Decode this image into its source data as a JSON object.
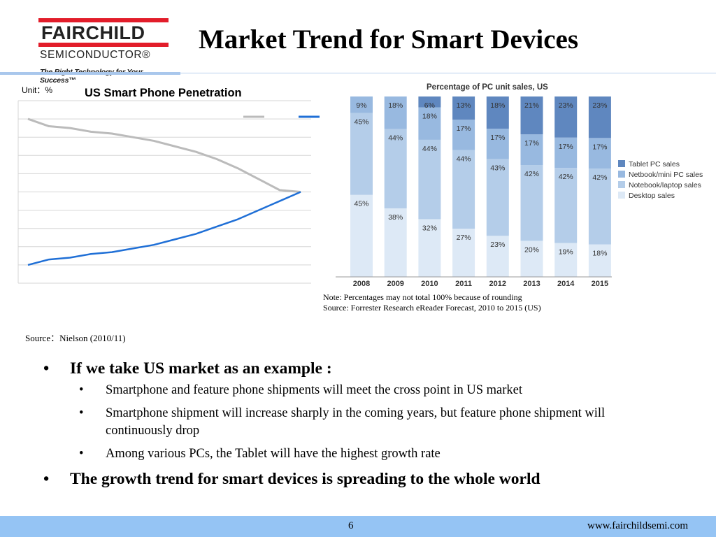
{
  "logo": {
    "word": "FAIRCHILD",
    "sub": "SEMICONDUCTOR®",
    "tagline": "The Right Technology for Your Success™",
    "brand_color": "#e21d2a"
  },
  "title": "Market Trend for Smart Devices",
  "line_chart_unit": "Unit：%",
  "line_chart_source": "Source：Nielson (2010/11)",
  "bar_chart_note": "Note: Percentages may not total 100% because of rounding",
  "bar_chart_source": "Source:  Forrester Research eReader Forecast, 2010 to 2015 (US)",
  "bullets": [
    {
      "level": 1,
      "text": "If we take US market as an example :"
    },
    {
      "level": 2,
      "text": "Smartphone and feature phone shipments will meet the cross point in US market"
    },
    {
      "level": 2,
      "text": "Smartphone shipment will increase sharply in the coming years, but feature phone shipment will continuously drop"
    },
    {
      "level": 2,
      "text": "Among various PCs, the Tablet will have the highest growth rate"
    },
    {
      "level": 1,
      "text": "The growth trend for smart devices is spreading to the whole world"
    }
  ],
  "footer": {
    "page": "6",
    "url": "www.fairchildsemi.com"
  },
  "chart_data": [
    {
      "type": "line",
      "title": "US Smart Phone Penetration",
      "ylabel": "Unit：%",
      "grid": true,
      "legend": "top-right",
      "ylim": [
        0,
        100
      ],
      "series": [
        {
          "color": "#bbbbbb",
          "values": [
            90,
            86,
            85,
            83,
            82,
            80,
            78,
            75,
            72,
            68,
            63,
            57,
            51,
            50
          ]
        },
        {
          "color": "#1f6fd6",
          "values": [
            10,
            13,
            14,
            16,
            17,
            19,
            21,
            24,
            27,
            31,
            35,
            40,
            45,
            50
          ]
        }
      ]
    },
    {
      "type": "bar",
      "title": "Percentage of PC unit sales, US",
      "categories": [
        "2008",
        "2009",
        "2010",
        "2011",
        "2012",
        "2013",
        "2014",
        "2015"
      ],
      "legend": "right",
      "series": [
        {
          "name": "Desktop sales",
          "color": "#dde9f6",
          "values": [
            45,
            38,
            32,
            27,
            23,
            20,
            19,
            18
          ]
        },
        {
          "name": "Notebook/laptop sales",
          "color": "#b4cde9",
          "values": [
            45,
            44,
            44,
            44,
            43,
            42,
            42,
            42
          ]
        },
        {
          "name": "Netbook/mini PC sales",
          "color": "#98b9e0",
          "values": [
            9,
            18,
            18,
            17,
            17,
            17,
            17,
            17
          ]
        },
        {
          "name": "Tablet PC sales",
          "color": "#5f87bf",
          "values": [
            null,
            null,
            6,
            13,
            18,
            21,
            23,
            23
          ]
        }
      ],
      "data_labels": {
        "Desktop sales": [
          "45%",
          "38%",
          "32%",
          "27%",
          "23%",
          "20%",
          "19%",
          "18%"
        ],
        "Notebook/laptop sales": [
          "45%",
          "44%",
          "44%",
          "44%",
          "43%",
          "42%",
          "42%",
          "42%"
        ],
        "Netbook/mini PC sales": [
          "9%",
          "18%",
          "18%",
          "17%",
          "17%",
          "17%",
          "17%",
          "17%"
        ],
        "Tablet PC sales": [
          "",
          "",
          "6%",
          "13%",
          "18%",
          "21%",
          "23%",
          "23%"
        ]
      }
    }
  ]
}
